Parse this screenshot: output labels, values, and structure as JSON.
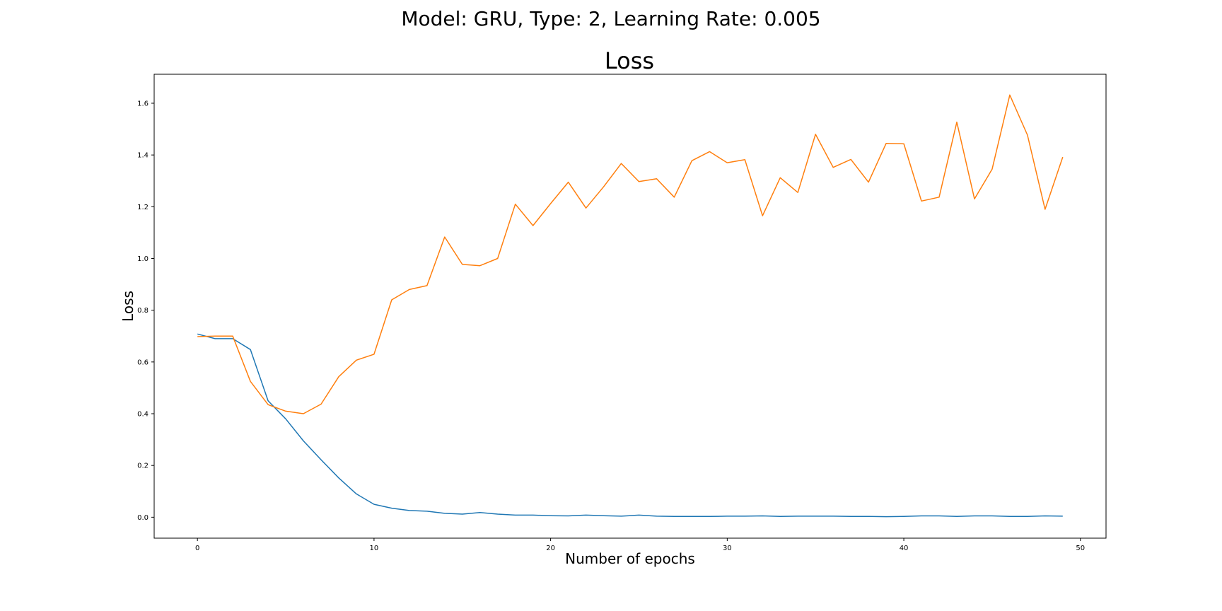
{
  "figure": {
    "suptitle": "Model: GRU, Type: 2, Learning Rate: 0.005"
  },
  "chart_data": {
    "type": "line",
    "title": "Loss",
    "xlabel": "Number of epochs",
    "ylabel": "Loss",
    "xlim": [
      -2.45,
      51.45
    ],
    "ylim": [
      -0.081,
      1.712
    ],
    "xticks": [
      0,
      10,
      20,
      30,
      40,
      50
    ],
    "yticks": [
      0.0,
      0.2,
      0.4,
      0.6,
      0.8,
      1.0,
      1.2,
      1.4,
      1.6
    ],
    "grid": false,
    "x": [
      0,
      1,
      2,
      3,
      4,
      5,
      6,
      7,
      8,
      9,
      10,
      11,
      12,
      13,
      14,
      15,
      16,
      17,
      18,
      19,
      20,
      21,
      22,
      23,
      24,
      25,
      26,
      27,
      28,
      29,
      30,
      31,
      32,
      33,
      34,
      35,
      36,
      37,
      38,
      39,
      40,
      41,
      42,
      43,
      44,
      45,
      46,
      47,
      48,
      49
    ],
    "series": [
      {
        "color": "#1f77b4",
        "values": [
          0.708,
          0.69,
          0.69,
          0.648,
          0.45,
          0.38,
          0.295,
          0.222,
          0.152,
          0.09,
          0.05,
          0.035,
          0.026,
          0.023,
          0.015,
          0.012,
          0.018,
          0.012,
          0.008,
          0.008,
          0.006,
          0.005,
          0.008,
          0.006,
          0.004,
          0.008,
          0.004,
          0.003,
          0.003,
          0.003,
          0.004,
          0.004,
          0.005,
          0.003,
          0.004,
          0.004,
          0.004,
          0.003,
          0.003,
          0.002,
          0.003,
          0.005,
          0.005,
          0.003,
          0.005,
          0.005,
          0.003,
          0.003,
          0.005,
          0.004
        ]
      },
      {
        "color": "#ff7f0e",
        "values": [
          0.698,
          0.7,
          0.7,
          0.525,
          0.435,
          0.41,
          0.4,
          0.437,
          0.543,
          0.607,
          0.63,
          0.84,
          0.88,
          0.895,
          1.083,
          0.977,
          0.972,
          1.0,
          1.21,
          1.127,
          1.212,
          1.295,
          1.195,
          1.277,
          1.367,
          1.297,
          1.308,
          1.237,
          1.378,
          1.413,
          1.37,
          1.382,
          1.165,
          1.312,
          1.255,
          1.48,
          1.352,
          1.383,
          1.295,
          1.445,
          1.443,
          1.222,
          1.237,
          1.527,
          1.23,
          1.345,
          1.632,
          1.477,
          1.19,
          1.392
        ]
      }
    ]
  }
}
